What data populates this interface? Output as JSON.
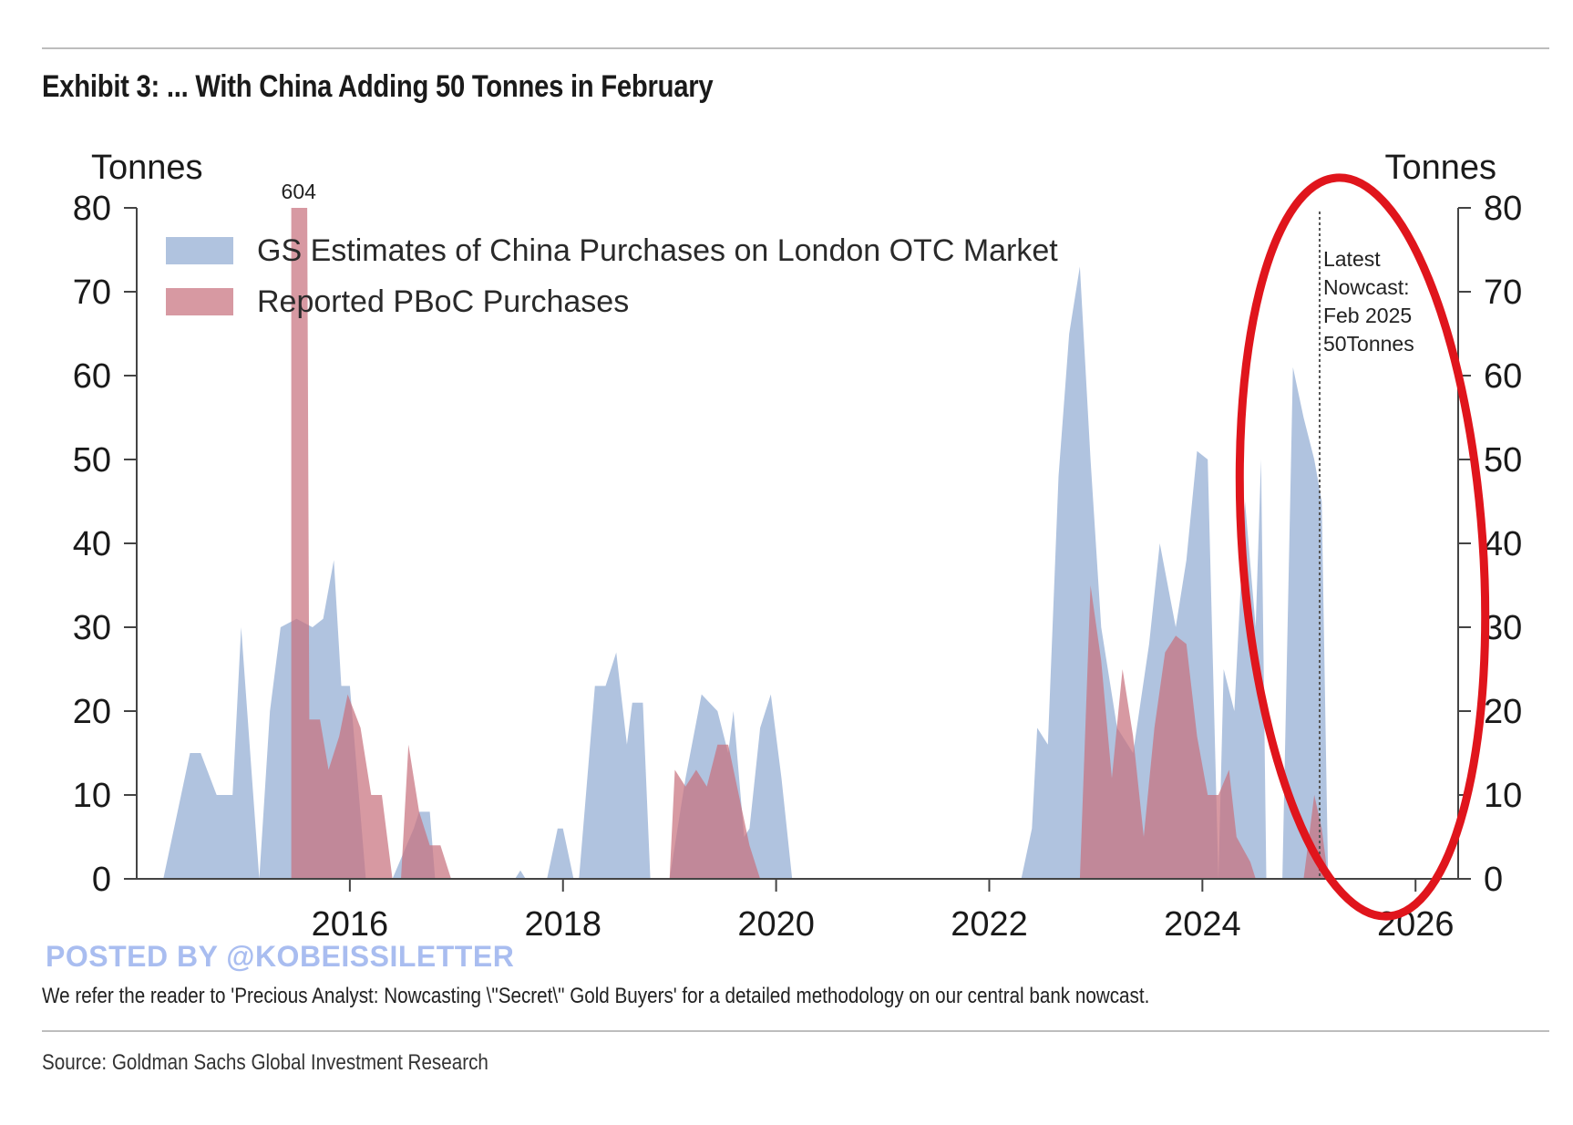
{
  "title": "Exhibit 3: ... With China Adding 50 Tonnes in February",
  "note": "We refer the reader to 'Precious Analyst: Nowcasting \\\"Secret\\\" Gold Buyers' for a detailed methodology on our central bank nowcast.",
  "source": "Source: Goldman Sachs Global Investment Research",
  "watermark": "POSTED BY @KOBEISSILETTER",
  "colors": {
    "gs_estimates": "#a7bcdc",
    "pboc": "#c7727e",
    "highlight_circle": "#e0151c"
  },
  "chart_data": {
    "type": "area",
    "left_axis_label": "Tonnes",
    "right_axis_label": "Tonnes",
    "ylim": [
      0,
      80
    ],
    "y_ticks": [
      0,
      10,
      20,
      30,
      40,
      50,
      60,
      70,
      80
    ],
    "xlim": [
      2014.0,
      2026.4
    ],
    "x_ticks": [
      "2016",
      "2018",
      "2020",
      "2022",
      "2024",
      "2026"
    ],
    "legend_position": "top-left",
    "grid": false,
    "series": [
      {
        "name": "GS Estimates of China Purchases on London OTC Market",
        "points": [
          [
            2014.25,
            0
          ],
          [
            2014.5,
            15
          ],
          [
            2014.6,
            15
          ],
          [
            2014.75,
            10
          ],
          [
            2014.9,
            10
          ],
          [
            2014.98,
            30
          ],
          [
            2015.15,
            0
          ],
          [
            2015.25,
            20
          ],
          [
            2015.35,
            30
          ],
          [
            2015.5,
            31
          ],
          [
            2015.65,
            30
          ],
          [
            2015.75,
            31
          ],
          [
            2015.85,
            38
          ],
          [
            2015.92,
            23
          ],
          [
            2016.0,
            23
          ],
          [
            2016.15,
            0
          ],
          [
            2016.4,
            0
          ],
          [
            2016.6,
            6
          ],
          [
            2016.65,
            8
          ],
          [
            2016.75,
            8
          ],
          [
            2016.8,
            0
          ],
          [
            2017.55,
            0
          ],
          [
            2017.6,
            1
          ],
          [
            2017.65,
            0
          ],
          [
            2017.85,
            0
          ],
          [
            2017.95,
            6
          ],
          [
            2018.0,
            6
          ],
          [
            2018.1,
            0
          ],
          [
            2018.15,
            0
          ],
          [
            2018.3,
            23
          ],
          [
            2018.4,
            23
          ],
          [
            2018.5,
            27
          ],
          [
            2018.6,
            16
          ],
          [
            2018.65,
            21
          ],
          [
            2018.75,
            21
          ],
          [
            2018.82,
            0
          ],
          [
            2019.0,
            0
          ],
          [
            2019.15,
            12
          ],
          [
            2019.3,
            22
          ],
          [
            2019.45,
            20
          ],
          [
            2019.55,
            15
          ],
          [
            2019.6,
            20
          ],
          [
            2019.7,
            5
          ],
          [
            2019.75,
            6
          ],
          [
            2019.85,
            18
          ],
          [
            2019.95,
            22
          ],
          [
            2020.05,
            12
          ],
          [
            2020.15,
            0
          ],
          [
            2022.3,
            0
          ],
          [
            2022.4,
            6
          ],
          [
            2022.45,
            18
          ],
          [
            2022.55,
            16
          ],
          [
            2022.65,
            48
          ],
          [
            2022.75,
            65
          ],
          [
            2022.85,
            73
          ],
          [
            2022.95,
            50
          ],
          [
            2023.05,
            30
          ],
          [
            2023.2,
            18
          ],
          [
            2023.35,
            15
          ],
          [
            2023.5,
            28
          ],
          [
            2023.6,
            40
          ],
          [
            2023.75,
            30
          ],
          [
            2023.85,
            38
          ],
          [
            2023.95,
            51
          ],
          [
            2024.05,
            50
          ],
          [
            2024.15,
            0
          ],
          [
            2024.2,
            25
          ],
          [
            2024.3,
            20
          ],
          [
            2024.4,
            45
          ],
          [
            2024.5,
            30
          ],
          [
            2024.55,
            50
          ],
          [
            2024.6,
            0
          ],
          [
            2024.75,
            0
          ],
          [
            2024.85,
            61
          ],
          [
            2024.95,
            55
          ],
          [
            2025.05,
            50
          ],
          [
            2025.12,
            45
          ],
          [
            2025.18,
            0
          ]
        ]
      },
      {
        "name": "Reported PBoC Purchases",
        "annotation": "604",
        "points": [
          [
            2015.45,
            0
          ],
          [
            2015.45,
            80
          ],
          [
            2015.6,
            80
          ],
          [
            2015.62,
            19
          ],
          [
            2015.72,
            19
          ],
          [
            2015.8,
            13
          ],
          [
            2015.9,
            17
          ],
          [
            2015.98,
            22
          ],
          [
            2016.1,
            18
          ],
          [
            2016.2,
            10
          ],
          [
            2016.3,
            10
          ],
          [
            2016.4,
            0
          ],
          [
            2016.48,
            0
          ],
          [
            2016.55,
            16
          ],
          [
            2016.65,
            8
          ],
          [
            2016.75,
            4
          ],
          [
            2016.85,
            4
          ],
          [
            2016.95,
            0
          ],
          [
            2019.0,
            0
          ],
          [
            2019.05,
            13
          ],
          [
            2019.15,
            11
          ],
          [
            2019.25,
            13
          ],
          [
            2019.35,
            11
          ],
          [
            2019.45,
            16
          ],
          [
            2019.55,
            16
          ],
          [
            2019.65,
            10
          ],
          [
            2019.75,
            4
          ],
          [
            2019.85,
            0
          ],
          [
            2022.85,
            0
          ],
          [
            2022.95,
            35
          ],
          [
            2023.05,
            26
          ],
          [
            2023.15,
            12
          ],
          [
            2023.25,
            25
          ],
          [
            2023.35,
            17
          ],
          [
            2023.45,
            5
          ],
          [
            2023.55,
            18
          ],
          [
            2023.65,
            27
          ],
          [
            2023.75,
            29
          ],
          [
            2023.85,
            28
          ],
          [
            2023.95,
            17
          ],
          [
            2024.05,
            10
          ],
          [
            2024.15,
            10
          ],
          [
            2024.25,
            13
          ],
          [
            2024.32,
            5
          ],
          [
            2024.45,
            2
          ],
          [
            2024.5,
            0
          ],
          [
            2024.95,
            0
          ],
          [
            2025.0,
            5
          ],
          [
            2025.05,
            10
          ],
          [
            2025.12,
            6
          ],
          [
            2025.18,
            0
          ]
        ]
      }
    ],
    "annotations": {
      "nowcast_line": {
        "x": 2025.1,
        "lines": [
          "Latest",
          "Nowcast:",
          "Feb 2025",
          "50Tonnes"
        ]
      },
      "peak_label": "604"
    }
  }
}
